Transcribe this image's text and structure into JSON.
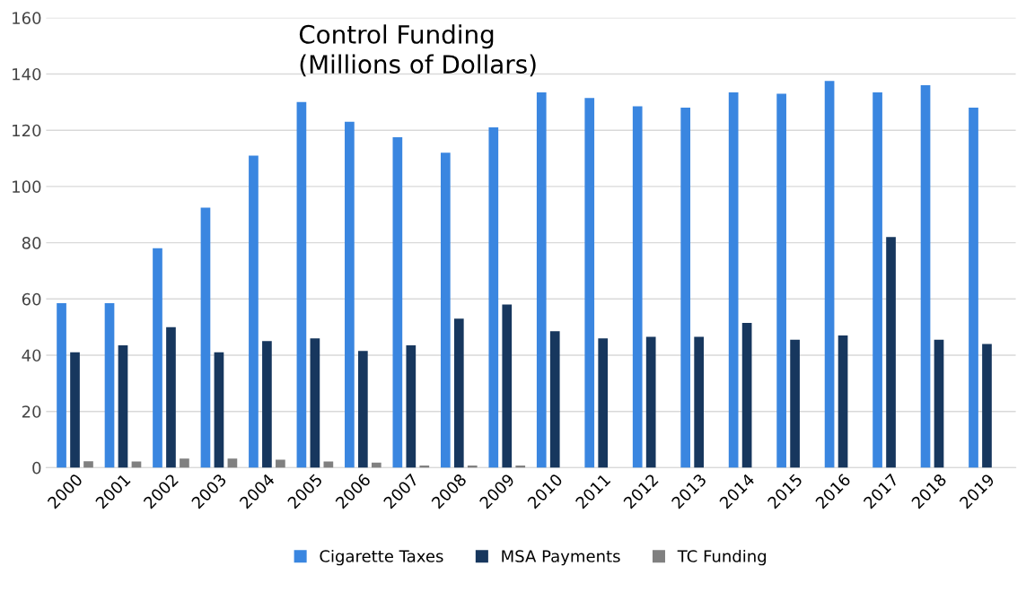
{
  "chart_data": {
    "type": "bar",
    "title": "Control Funding\n(Millions of Dollars)",
    "categories": [
      "2000",
      "2001",
      "2002",
      "2003",
      "2004",
      "2005",
      "2006",
      "2007",
      "2008",
      "2009",
      "2010",
      "2011",
      "2012",
      "2013",
      "2014",
      "2015",
      "2016",
      "2017",
      "2018",
      "2019"
    ],
    "series": [
      {
        "name": "Cigarette Taxes",
        "color": "#3a86e0",
        "values": [
          58.5,
          58.5,
          78,
          92.5,
          111,
          130,
          123,
          117.5,
          112,
          121,
          133.5,
          131.5,
          128.5,
          128,
          133.5,
          133,
          137.5,
          133.5,
          136,
          128
        ]
      },
      {
        "name": "MSA Payments",
        "color": "#17375e",
        "values": [
          41,
          43.5,
          50,
          41,
          45,
          46,
          41.5,
          43.5,
          53,
          58,
          48.5,
          46,
          46.5,
          46.5,
          51.5,
          45.5,
          47,
          82,
          45.5,
          44
        ]
      },
      {
        "name": "TC Funding",
        "color": "#808080",
        "values": [
          2.3,
          2.2,
          3.2,
          3.2,
          2.8,
          2.2,
          1.8,
          0.8,
          0.8,
          0.8,
          0,
          0,
          0,
          0,
          0,
          0,
          0,
          0,
          0,
          0
        ]
      }
    ],
    "ylim": [
      0,
      160
    ],
    "yticks": [
      0,
      20,
      40,
      60,
      80,
      100,
      120,
      140,
      160
    ],
    "grid": "y",
    "legend": "bottom"
  }
}
